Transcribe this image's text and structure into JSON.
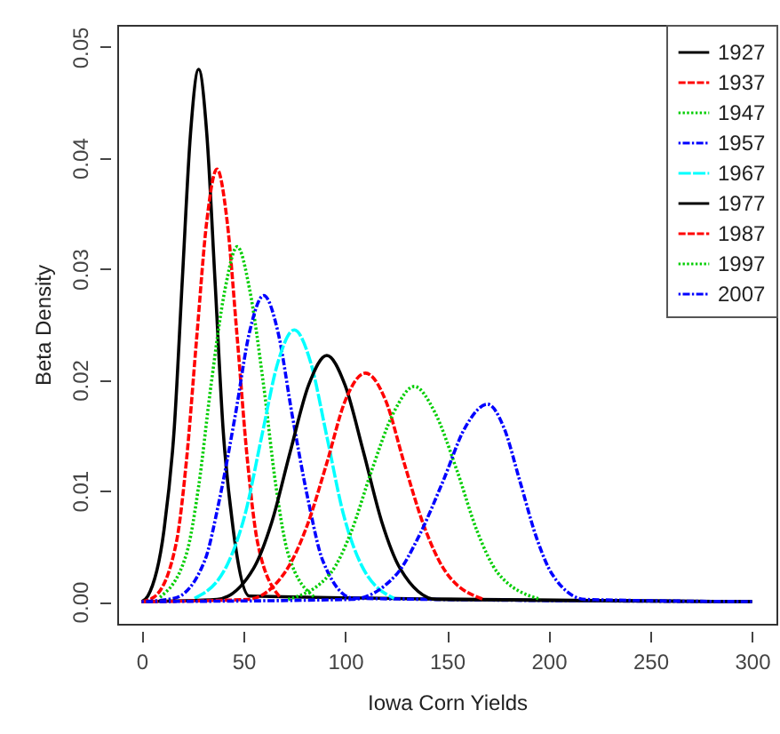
{
  "chart_data": {
    "type": "line",
    "xlabel": "Iowa Corn Yields",
    "ylabel": "Beta Density",
    "xlim": [
      -12,
      312
    ],
    "xticks": [
      0,
      50,
      100,
      150,
      200,
      250,
      300
    ],
    "ylim": [
      -0.002,
      0.052
    ],
    "yticks": [
      {
        "value": 0,
        "label": "0.00"
      },
      0.01,
      0.02,
      0.03,
      0.04,
      0.05
    ],
    "grid": false,
    "legend": "top right",
    "marker": "none",
    "series": [
      {
        "name": "1927",
        "color": "#000000",
        "line_style": "solid",
        "x": [
          0,
          3,
          11,
          16,
          20,
          24,
          28,
          32,
          36,
          40,
          45,
          53,
          300
        ],
        "values": [
          0,
          0.0005,
          0.0065,
          0.0156,
          0.0291,
          0.0422,
          0.048,
          0.0422,
          0.0291,
          0.0156,
          0.0065,
          0.0005,
          0
        ]
      },
      {
        "name": "1937",
        "color": "#ff0000",
        "line_style": "dashed",
        "x": [
          0,
          6,
          17,
          22,
          27,
          32,
          37,
          42,
          47,
          52,
          57,
          68
        ],
        "values": [
          0,
          0.0004,
          0.0053,
          0.0127,
          0.0237,
          0.0343,
          0.039,
          0.0343,
          0.0237,
          0.0127,
          0.0053,
          0.0004
        ]
      },
      {
        "name": "1947",
        "color": "#00cd00",
        "line_style": "dotted",
        "x": [
          9,
          22,
          28,
          34,
          41,
          47,
          53,
          60,
          66,
          72,
          85
        ],
        "values": [
          0.0004,
          0.0043,
          0.0104,
          0.0194,
          0.0282,
          0.032,
          0.0282,
          0.0194,
          0.0104,
          0.0043,
          0.0004
        ]
      },
      {
        "name": "1957",
        "color": "#0000ff",
        "line_style": "dashdot",
        "x": [
          0,
          16,
          31,
          38,
          46,
          53,
          60,
          67,
          74,
          82,
          89,
          104,
          300
        ],
        "values": [
          0,
          0.0003,
          0.0037,
          0.009,
          0.0168,
          0.0243,
          0.0276,
          0.0243,
          0.0168,
          0.009,
          0.0037,
          0.0003,
          0
        ]
      },
      {
        "name": "1967",
        "color": "#00ffff",
        "line_style": "longdash",
        "x": [
          26,
          42,
          51,
          59,
          67,
          75,
          83,
          91,
          99,
          108,
          124
        ],
        "values": [
          0.0003,
          0.0033,
          0.008,
          0.0149,
          0.0216,
          0.0245,
          0.0216,
          0.0149,
          0.008,
          0.0033,
          0.0003
        ]
      },
      {
        "name": "1977",
        "color": "#000000",
        "line_style": "solid",
        "x": [
          0,
          37,
          55,
          64,
          73,
          82,
          91,
          100,
          109,
          118,
          127,
          145,
          300
        ],
        "values": [
          0,
          0.0002,
          0.003,
          0.0072,
          0.0135,
          0.0195,
          0.0222,
          0.0195,
          0.0135,
          0.0072,
          0.003,
          0.0002,
          0
        ]
      },
      {
        "name": "1987",
        "color": "#ff0000",
        "line_style": "dashed",
        "x": [
          0,
          52,
          71,
          81,
          91,
          100,
          110,
          120,
          129,
          139,
          149,
          168
        ],
        "values": [
          0,
          0.0002,
          0.0028,
          0.0067,
          0.0125,
          0.0181,
          0.0206,
          0.0181,
          0.0125,
          0.0067,
          0.0028,
          0.0002
        ]
      },
      {
        "name": "1997",
        "color": "#00cd00",
        "line_style": "dotted",
        "x": [
          72,
          93,
          103,
          113,
          124,
          134,
          144,
          155,
          165,
          175,
          196
        ],
        "values": [
          0.0002,
          0.0026,
          0.0063,
          0.0118,
          0.0171,
          0.0194,
          0.0171,
          0.0118,
          0.0063,
          0.0026,
          0.0002
        ]
      },
      {
        "name": "2007",
        "color": "#0000ff",
        "line_style": "dashdot",
        "x": [
          0,
          103,
          125,
          136,
          148,
          159,
          170,
          178,
          186,
          194,
          202,
          218,
          300
        ],
        "values": [
          0,
          0.0002,
          0.0024,
          0.0058,
          0.0108,
          0.0157,
          0.0178,
          0.0157,
          0.0108,
          0.0058,
          0.0024,
          0.0002,
          0
        ]
      }
    ]
  }
}
